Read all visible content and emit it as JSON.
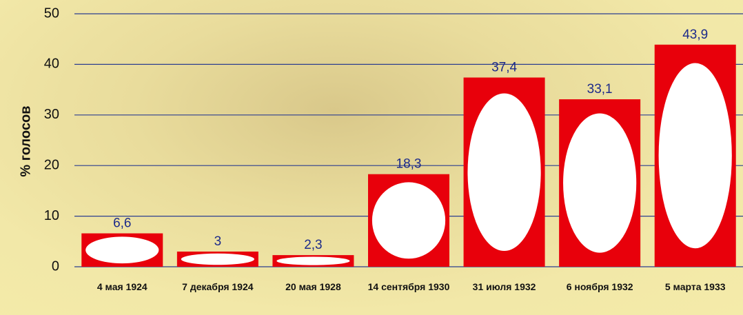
{
  "chart_data": {
    "type": "bar",
    "ylabel": "% голосов",
    "categories": [
      "4 мая 1924",
      "7 декабря 1924",
      "20 мая 1928",
      "14 сентября 1930",
      "31 июля 1932",
      "6 ноября 1932",
      "5 марта 1933"
    ],
    "values": [
      6.6,
      3,
      2.3,
      18.3,
      37.4,
      33.1,
      43.9
    ],
    "value_labels": [
      "6,6",
      "3",
      "2,3",
      "18,3",
      "37,4",
      "33,1",
      "43,9"
    ],
    "color": "#e8000b",
    "ylim": [
      0,
      50
    ],
    "yticks": [
      0,
      10,
      20,
      30,
      40,
      50
    ],
    "grid": true
  }
}
